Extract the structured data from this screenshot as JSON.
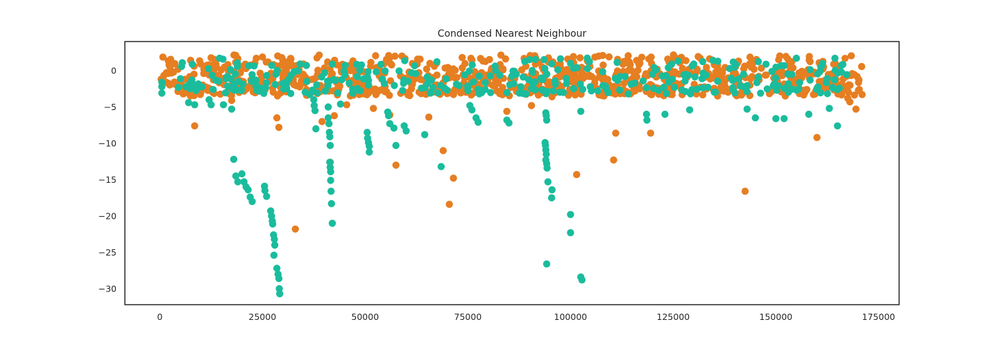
{
  "chart_data": {
    "type": "scatter",
    "title": "Condensed Nearest Neighbour",
    "xlabel": "",
    "ylabel": "",
    "xlim": [
      -8500,
      180000
    ],
    "ylim": [
      -32.2,
      4
    ],
    "x_ticks": [
      0,
      25000,
      50000,
      75000,
      100000,
      125000,
      150000,
      175000
    ],
    "x_tick_labels": [
      "0",
      "25000",
      "50000",
      "75000",
      "100000",
      "125000",
      "150000",
      "175000"
    ],
    "y_ticks": [
      0,
      -5,
      -10,
      -15,
      -20,
      -25,
      -30
    ],
    "y_tick_labels": [
      "0",
      "−5",
      "−10",
      "−15",
      "−20",
      "−25",
      "−30"
    ],
    "grid": false,
    "legend": "none",
    "series": [
      {
        "color": "#e67e22",
        "bands": [
          {
            "x0": 0,
            "x1": 171000,
            "y0": -3.5,
            "y1": 2.2,
            "count": 900
          }
        ],
        "points": [
          [
            8500,
            -7.6
          ],
          [
            28500,
            -6.5
          ],
          [
            29000,
            -7.8
          ],
          [
            17000,
            -3.2
          ],
          [
            17500,
            -4.1
          ],
          [
            33000,
            -21.8
          ],
          [
            41500,
            -12.6
          ],
          [
            39500,
            -7.0
          ],
          [
            42500,
            -6.2
          ],
          [
            45500,
            -4.7
          ],
          [
            52000,
            -5.2
          ],
          [
            56000,
            -6.1
          ],
          [
            57500,
            -13.0
          ],
          [
            65500,
            -6.4
          ],
          [
            69000,
            -11.0
          ],
          [
            71500,
            -14.8
          ],
          [
            70500,
            -18.4
          ],
          [
            60000,
            -3.0
          ],
          [
            84500,
            -5.6
          ],
          [
            90500,
            -4.8
          ],
          [
            101500,
            -14.3
          ],
          [
            104500,
            -0.6
          ],
          [
            110500,
            -12.3
          ],
          [
            111000,
            -8.6
          ],
          [
            119500,
            -8.6
          ],
          [
            142500,
            -16.6
          ],
          [
            160000,
            -9.2
          ],
          [
            167500,
            -3.8
          ],
          [
            168000,
            -4.3
          ],
          [
            169500,
            -5.3
          ],
          [
            171000,
            -3.3
          ],
          [
            120000,
            0.2
          ],
          [
            95500,
            -3.6
          ],
          [
            10000,
            0.9
          ],
          [
            12000,
            -0.6
          ],
          [
            16500,
            -0.8
          ],
          [
            20000,
            0.4
          ],
          [
            35000,
            0.9
          ]
        ]
      },
      {
        "color": "#1abc9c",
        "bands": [
          {
            "x0": 5000,
            "x1": 168000,
            "y0": -3.2,
            "y1": 1.8,
            "count": 320
          }
        ],
        "points": [
          [
            500,
            -1.6
          ],
          [
            500,
            -2.2
          ],
          [
            500,
            -3.1
          ],
          [
            4500,
            -2.3
          ],
          [
            7000,
            -4.4
          ],
          [
            8500,
            -4.7
          ],
          [
            8000,
            -1.9
          ],
          [
            9000,
            -2.6
          ],
          [
            12000,
            -4.0
          ],
          [
            12500,
            -4.7
          ],
          [
            13000,
            -2.6
          ],
          [
            15500,
            -4.7
          ],
          [
            17500,
            -5.3
          ],
          [
            18000,
            -12.2
          ],
          [
            18500,
            -14.5
          ],
          [
            19000,
            -15.3
          ],
          [
            20000,
            -14.2
          ],
          [
            20500,
            -15.3
          ],
          [
            21000,
            -16.0
          ],
          [
            21500,
            -16.4
          ],
          [
            22000,
            -17.4
          ],
          [
            22500,
            -18.0
          ],
          [
            25500,
            -15.9
          ],
          [
            25600,
            -16.5
          ],
          [
            26000,
            -17.3
          ],
          [
            27000,
            -19.3
          ],
          [
            27200,
            -20.0
          ],
          [
            27400,
            -20.7
          ],
          [
            27500,
            -21.1
          ],
          [
            27700,
            -22.6
          ],
          [
            27900,
            -23.2
          ],
          [
            28000,
            -24.0
          ],
          [
            27800,
            -25.4
          ],
          [
            28500,
            -27.2
          ],
          [
            28800,
            -28.0
          ],
          [
            29000,
            -28.6
          ],
          [
            29100,
            -30.0
          ],
          [
            29200,
            -30.7
          ],
          [
            36500,
            -3.3
          ],
          [
            37500,
            -4.0
          ],
          [
            37600,
            -4.8
          ],
          [
            37800,
            -5.5
          ],
          [
            38000,
            -8.0
          ],
          [
            41000,
            -5.0
          ],
          [
            41000,
            -6.5
          ],
          [
            41200,
            -7.3
          ],
          [
            41300,
            -8.5
          ],
          [
            41400,
            -9.1
          ],
          [
            41500,
            -10.3
          ],
          [
            41400,
            -12.6
          ],
          [
            41500,
            -13.3
          ],
          [
            41600,
            -13.9
          ],
          [
            41600,
            -15.1
          ],
          [
            41700,
            -16.6
          ],
          [
            41800,
            -18.3
          ],
          [
            42000,
            -21.0
          ],
          [
            44000,
            -4.6
          ],
          [
            50500,
            -8.5
          ],
          [
            50600,
            -9.3
          ],
          [
            50800,
            -9.9
          ],
          [
            51000,
            -10.4
          ],
          [
            51000,
            -11.2
          ],
          [
            55500,
            -5.7
          ],
          [
            55700,
            -6.2
          ],
          [
            56000,
            -7.3
          ],
          [
            57000,
            -7.9
          ],
          [
            57500,
            -10.3
          ],
          [
            59500,
            -7.6
          ],
          [
            60000,
            -8.3
          ],
          [
            64500,
            -8.8
          ],
          [
            68500,
            -13.2
          ],
          [
            75500,
            -4.8
          ],
          [
            76000,
            -5.4
          ],
          [
            77000,
            -6.5
          ],
          [
            77500,
            -7.1
          ],
          [
            84500,
            -6.8
          ],
          [
            85000,
            -7.2
          ],
          [
            94000,
            -5.8
          ],
          [
            94100,
            -6.2
          ],
          [
            94200,
            -6.8
          ],
          [
            93800,
            -9.9
          ],
          [
            93900,
            -10.3
          ],
          [
            94000,
            -10.9
          ],
          [
            94100,
            -11.5
          ],
          [
            94000,
            -12.3
          ],
          [
            94200,
            -12.8
          ],
          [
            94300,
            -13.4
          ],
          [
            94500,
            -15.3
          ],
          [
            95500,
            -16.4
          ],
          [
            95400,
            -17.5
          ],
          [
            94200,
            -26.6
          ],
          [
            100000,
            -19.8
          ],
          [
            100000,
            -22.3
          ],
          [
            102500,
            -28.4
          ],
          [
            102800,
            -28.8
          ],
          [
            102500,
            -5.6
          ],
          [
            118500,
            -6.0
          ],
          [
            118600,
            -6.8
          ],
          [
            123000,
            -6.0
          ],
          [
            129000,
            -5.4
          ],
          [
            143000,
            -5.3
          ],
          [
            145000,
            -6.5
          ],
          [
            150000,
            -6.6
          ],
          [
            152000,
            -6.6
          ],
          [
            158000,
            -6.0
          ],
          [
            163000,
            -5.2
          ],
          [
            165000,
            -7.6
          ],
          [
            90000,
            1.5
          ],
          [
            100000,
            1.0
          ],
          [
            130000,
            0.9
          ],
          [
            155000,
            1.7
          ]
        ]
      }
    ]
  }
}
